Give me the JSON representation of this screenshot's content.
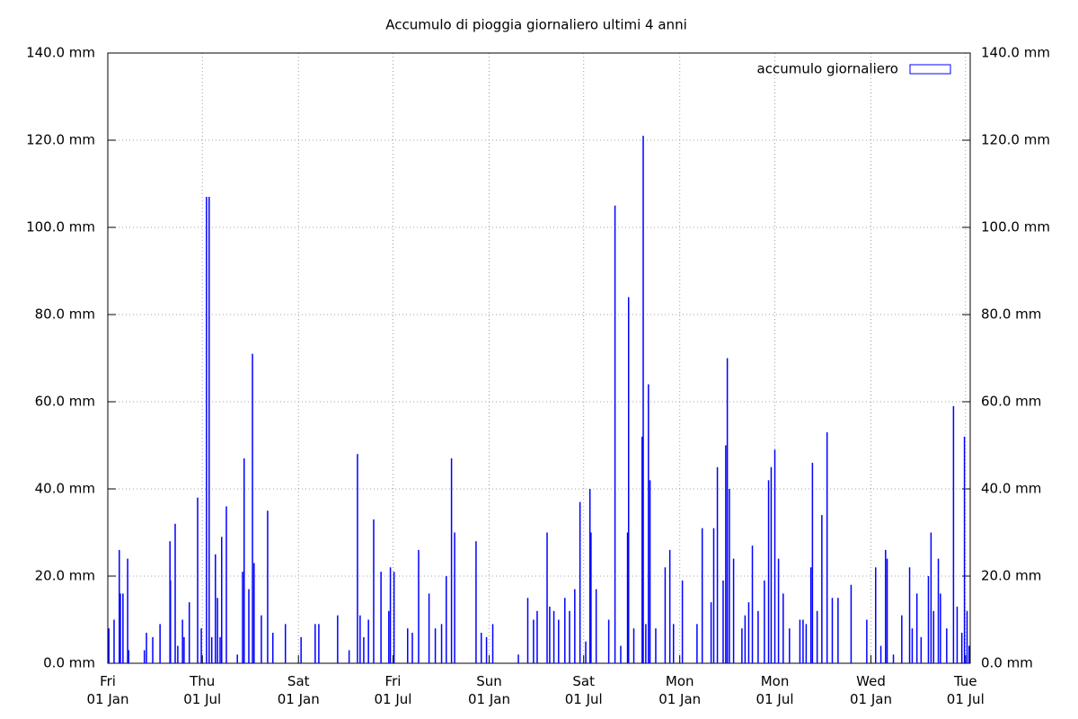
{
  "chart_data": {
    "type": "bar",
    "title": "Accumulo di pioggia giornaliero ultimi 4 anni",
    "xlim": [
      0,
      1651
    ],
    "xticks": [
      {
        "value": 0,
        "label": "Fri\n01 Jan"
      },
      {
        "value": 181,
        "label": "Thu\n01 Jul"
      },
      {
        "value": 365,
        "label": "Sat\n01 Jan"
      },
      {
        "value": 546,
        "label": "Fri\n01 Jul"
      },
      {
        "value": 730,
        "label": "Sun\n01 Jan"
      },
      {
        "value": 911,
        "label": "Sat\n01 Jul"
      },
      {
        "value": 1095,
        "label": "Mon\n01 Jan"
      },
      {
        "value": 1277,
        "label": "Mon\n01 Jul"
      },
      {
        "value": 1461,
        "label": "Wed\n01 Jan"
      },
      {
        "value": 1642,
        "label": "Tue\n01 Jul"
      }
    ],
    "ylim": [
      0,
      140
    ],
    "yticks": [
      {
        "value": 0,
        "label": "0.0 mm"
      },
      {
        "value": 20,
        "label": "20.0 mm"
      },
      {
        "value": 40,
        "label": "40.0 mm"
      },
      {
        "value": 60,
        "label": "60.0 mm"
      },
      {
        "value": 80,
        "label": "80.0 mm"
      },
      {
        "value": 100,
        "label": "100.0 mm"
      },
      {
        "value": 120,
        "label": "120.0 mm"
      },
      {
        "value": 140,
        "label": "140.0 mm"
      }
    ],
    "y2lim": [
      0,
      140
    ],
    "y2ticks": [
      {
        "value": 0,
        "label": "0.0 mm"
      },
      {
        "value": 20,
        "label": "20.0 mm"
      },
      {
        "value": 40,
        "label": "40.0 mm"
      },
      {
        "value": 60,
        "label": "60.0 mm"
      },
      {
        "value": 80,
        "label": "80.0 mm"
      },
      {
        "value": 100,
        "label": "100.0 mm"
      },
      {
        "value": 120,
        "label": "120.0 mm"
      },
      {
        "value": 140,
        "label": "140.0 mm"
      }
    ],
    "grid": true,
    "legend": "top-right",
    "x": [
      2,
      12,
      22,
      24,
      29,
      38,
      40,
      70,
      74,
      86,
      100,
      119,
      120,
      129,
      134,
      143,
      146,
      156,
      172,
      179,
      189,
      194,
      199,
      206,
      210,
      215,
      218,
      227,
      248,
      258,
      261,
      270,
      277,
      280,
      294,
      306,
      316,
      340,
      370,
      397,
      404,
      440,
      462,
      478,
      483,
      490,
      499,
      509,
      523,
      538,
      541,
      548,
      574,
      583,
      595,
      615,
      627,
      639,
      648,
      658,
      664,
      705,
      715,
      725,
      737,
      786,
      804,
      815,
      822,
      841,
      846,
      854,
      863,
      875,
      884,
      894,
      904,
      915,
      923,
      925,
      935,
      959,
      971,
      982,
      995,
      997,
      1007,
      1023,
      1025,
      1030,
      1035,
      1038,
      1049,
      1067,
      1076,
      1083,
      1100,
      1128,
      1138,
      1155,
      1160,
      1167,
      1178,
      1183,
      1186,
      1190,
      1198,
      1214,
      1220,
      1227,
      1234,
      1245,
      1257,
      1265,
      1270,
      1277,
      1284,
      1293,
      1305,
      1325,
      1331,
      1337,
      1346,
      1349,
      1358,
      1367,
      1377,
      1387,
      1398,
      1423,
      1453,
      1470,
      1480,
      1489,
      1492,
      1504,
      1520,
      1535,
      1540,
      1549,
      1557,
      1571,
      1576,
      1581,
      1590,
      1594,
      1606,
      1619,
      1626,
      1635,
      1640,
      1645,
      1649
    ],
    "series": [
      {
        "name": "accumulo giornaliero",
        "color": "#0000ff",
        "values": [
          8,
          10,
          26,
          16,
          16,
          24,
          3,
          3,
          7,
          6,
          9,
          28,
          19,
          32,
          4,
          10,
          6,
          14,
          38,
          8,
          107,
          107,
          6,
          25,
          15,
          6,
          29,
          36,
          2,
          21,
          47,
          17,
          71,
          23,
          11,
          35,
          7,
          9,
          6,
          9,
          9,
          11,
          3,
          48,
          11,
          6,
          10,
          33,
          21,
          12,
          22,
          21,
          8,
          7,
          26,
          16,
          8,
          9,
          20,
          47,
          30,
          28,
          7,
          6,
          9,
          2,
          15,
          10,
          12,
          30,
          13,
          12,
          10,
          15,
          12,
          17,
          37,
          5,
          40,
          30,
          17,
          10,
          105,
          4,
          30,
          84,
          8,
          52,
          121,
          9,
          64,
          42,
          8,
          22,
          26,
          9,
          19,
          9,
          31,
          14,
          31,
          45,
          19,
          50,
          70,
          40,
          24,
          8,
          11,
          14,
          27,
          12,
          19,
          42,
          45,
          49,
          24,
          16,
          8,
          10,
          10,
          9,
          22,
          46,
          12,
          34,
          53,
          15,
          15,
          18,
          10,
          22,
          4,
          26,
          24,
          2,
          11,
          22,
          8,
          16,
          6,
          20,
          30,
          12,
          24,
          16,
          8,
          59,
          13,
          7,
          52,
          12,
          4
        ]
      }
    ]
  }
}
